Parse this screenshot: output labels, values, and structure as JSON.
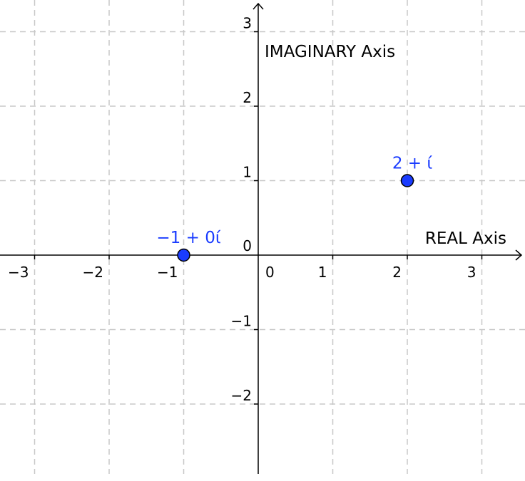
{
  "chart_data": {
    "type": "scatter",
    "title": "",
    "xlabel": "REAL Axis",
    "ylabel": "IMAGINARY Axis",
    "xlim": [
      -3.5,
      3.5
    ],
    "ylim": [
      -3,
      3.2
    ],
    "grid": true,
    "x_ticks": [
      "−3",
      "−2",
      "−1",
      "0",
      "1",
      "2",
      "3"
    ],
    "x_tick_values": [
      -3,
      -2,
      -1,
      0,
      1,
      2,
      3
    ],
    "y_ticks": [
      "−2",
      "−1",
      "0",
      "1",
      "2",
      "3"
    ],
    "y_tick_values": [
      -2,
      -1,
      0,
      1,
      2,
      3
    ],
    "points": [
      {
        "x": -1,
        "y": 0,
        "label": "−1 + 0ί"
      },
      {
        "x": 2,
        "y": 1,
        "label": "2 + ί"
      }
    ],
    "colors": {
      "point_fill": "#1a3cff",
      "label": "#1a3cff",
      "grid": "#c8c8c8",
      "axis": "#000000"
    }
  }
}
